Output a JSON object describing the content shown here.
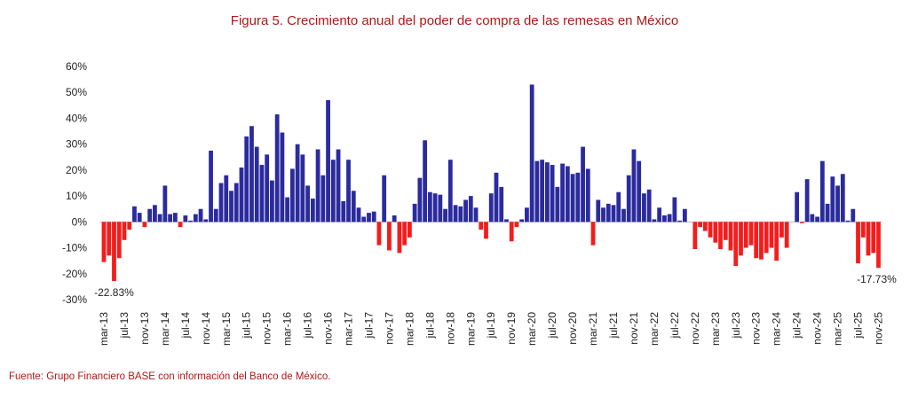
{
  "chart_data": {
    "type": "bar",
    "title": "Figura 5. Crecimiento anual del poder de compra de las remesas en México",
    "source": "Fuente: Grupo Financiero BASE con información del Banco de México.",
    "positive_color": "#2b2b9e",
    "negative_color": "#f51c1c",
    "ylim": [
      -30,
      60
    ],
    "yticks": [
      {
        "value": -30,
        "label": "-30%"
      },
      {
        "value": -20,
        "label": "-20%"
      },
      {
        "value": -10,
        "label": "-10%"
      },
      {
        "value": 0,
        "label": "0%"
      },
      {
        "value": 10,
        "label": "10%"
      },
      {
        "value": 20,
        "label": "20%"
      },
      {
        "value": 30,
        "label": "30%"
      },
      {
        "value": 40,
        "label": "40%"
      },
      {
        "value": 50,
        "label": "50%"
      },
      {
        "value": 60,
        "label": "60%"
      }
    ],
    "categories": [
      "mar-13",
      null,
      null,
      null,
      "jul-13",
      null,
      null,
      null,
      "nov-13",
      null,
      null,
      null,
      "mar-14",
      null,
      null,
      null,
      "jul-14",
      null,
      null,
      null,
      "nov-14",
      null,
      null,
      null,
      "mar-15",
      null,
      null,
      null,
      "jul-15",
      null,
      null,
      null,
      "nov-15",
      null,
      null,
      null,
      "mar-16",
      null,
      null,
      null,
      "jul-16",
      null,
      null,
      null,
      "nov-16",
      null,
      null,
      null,
      "mar-17",
      null,
      null,
      null,
      "jul-17",
      null,
      null,
      null,
      "nov-17",
      null,
      null,
      null,
      "mar-18",
      null,
      null,
      null,
      "jul-18",
      null,
      null,
      null,
      "nov-18",
      null,
      null,
      null,
      "mar-19",
      null,
      null,
      null,
      "jul-19",
      null,
      null,
      null,
      "nov-19",
      null,
      null,
      null,
      "mar-20",
      null,
      null,
      null,
      "jul-20",
      null,
      null,
      null,
      "nov-20",
      null,
      null,
      null,
      "mar-21",
      null,
      null,
      null,
      "jul-21",
      null,
      null,
      null,
      "nov-21",
      null,
      null,
      null,
      "mar-22",
      null,
      null,
      null,
      "jul-22",
      null,
      null,
      null,
      "nov-22",
      null,
      null,
      null,
      "mar-23",
      null,
      null,
      null,
      "jul-23",
      null,
      null,
      null,
      "nov-23",
      null,
      null,
      null,
      "mar-24",
      null,
      null,
      null,
      "jul-24",
      null,
      null,
      null,
      "nov-24",
      null,
      null,
      null,
      "mar-25",
      null,
      null,
      null,
      "jul-25",
      null,
      null,
      null,
      "nov-25"
    ],
    "values": [
      -15.5,
      -13,
      -22.83,
      -14,
      -7,
      -3,
      6,
      3.5,
      -2,
      5,
      6.5,
      3,
      14,
      3,
      3.5,
      -2,
      2.5,
      0.5,
      3,
      5,
      1,
      27.5,
      5,
      15,
      18,
      12,
      15,
      21,
      33,
      37,
      29,
      22,
      26,
      16,
      41.5,
      34.5,
      9.5,
      20.5,
      30,
      26,
      14,
      9,
      28,
      18,
      47,
      24,
      28,
      8,
      24,
      12,
      5.5,
      2,
      3.5,
      4,
      -9,
      18,
      -11,
      2.5,
      -12,
      -9,
      -6,
      7,
      17,
      31.5,
      11.5,
      11,
      10.5,
      5,
      24,
      6.5,
      6,
      8.5,
      10,
      5.5,
      -3,
      -6.5,
      11,
      19,
      13.5,
      1,
      -7.5,
      -2,
      1,
      5.5,
      53,
      23.5,
      24,
      23,
      22,
      13.5,
      22.5,
      21.5,
      18.5,
      19,
      29,
      20.5,
      -9,
      8.5,
      5.5,
      7,
      6.5,
      11.5,
      5,
      18,
      28,
      23.5,
      11,
      12.5,
      1,
      5.5,
      2.5,
      3,
      9.5,
      0.5,
      5,
      0,
      -10.5,
      -2,
      -3.5,
      -6,
      -8,
      -10.5,
      -7,
      -11,
      -17,
      -13,
      -10,
      -9,
      -14,
      -14.5,
      -12,
      -10,
      -15,
      -6,
      -10,
      0,
      11.5,
      -0.5,
      16.5,
      3,
      2,
      23.5,
      7,
      17.5,
      14,
      18.5,
      0.5,
      5,
      -16,
      -6,
      -13,
      -12,
      -17.73
    ],
    "value_labels": [
      null,
      null,
      "-22.83%",
      null,
      null,
      null,
      null,
      null,
      null,
      null,
      null,
      null,
      null,
      null,
      null,
      null,
      null,
      null,
      null,
      null,
      null,
      null,
      null,
      null,
      null,
      null,
      null,
      null,
      null,
      null,
      null,
      null,
      null,
      null,
      null,
      null,
      null,
      null,
      null,
      null,
      null,
      null,
      null,
      null,
      null,
      null,
      null,
      null,
      null,
      null,
      null,
      null,
      null,
      null,
      null,
      null,
      null,
      null,
      null,
      null,
      null,
      null,
      null,
      null,
      null,
      null,
      null,
      null,
      null,
      null,
      null,
      null,
      null,
      null,
      null,
      null,
      null,
      null,
      null,
      null,
      null,
      null,
      null,
      null,
      null,
      null,
      null,
      null,
      null,
      null,
      null,
      null,
      null,
      null,
      null,
      null,
      null,
      null,
      null,
      null,
      null,
      null,
      null,
      null,
      null,
      null,
      null,
      null,
      null,
      null,
      null,
      null,
      null,
      null,
      null,
      null,
      null,
      null,
      null,
      null,
      null,
      null,
      null,
      null,
      null,
      null,
      null,
      null,
      null,
      null,
      null,
      null,
      null,
      null,
      null,
      null,
      null,
      null,
      null,
      null,
      null,
      null,
      null,
      null,
      null,
      null,
      null,
      null,
      null,
      null,
      null,
      null,
      "-17.73%"
    ]
  }
}
